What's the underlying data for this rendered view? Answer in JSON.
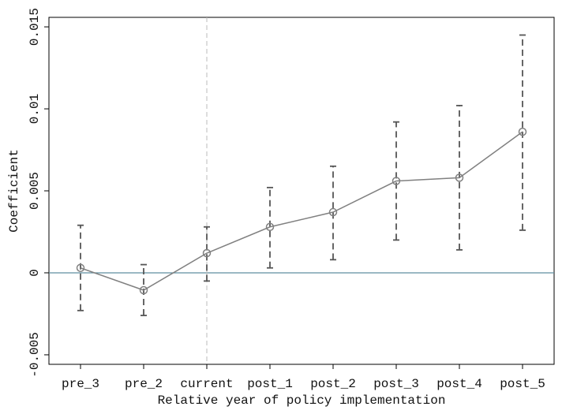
{
  "chart_data": {
    "type": "errorbar",
    "x_label": "Relative year of policy implementation",
    "y_label": "Coefficient",
    "categories": [
      "pre_3",
      "pre_2",
      "current",
      "post_1",
      "post_2",
      "post_3",
      "post_4",
      "post_5"
    ],
    "series": [
      {
        "color": "#808080",
        "error_color": "#555555",
        "values": [
          0.0003,
          -0.00106,
          0.0012,
          0.0028,
          0.0037,
          0.0056,
          0.0058,
          0.0086
        ],
        "lower": [
          -0.0023,
          -0.0026,
          -0.0005,
          0.0003,
          0.0008,
          0.002,
          0.0014,
          0.0026
        ],
        "upper": [
          0.0029,
          0.0005,
          0.0028,
          0.0052,
          0.0065,
          0.0092,
          0.0102,
          0.0145
        ]
      }
    ],
    "ylim": [
      -0.00558,
      0.01558
    ],
    "yticks": [
      -0.005,
      0,
      0.005,
      0.01,
      0.015
    ],
    "hline": 0,
    "hline_color": "#5f8fa0",
    "vline": "current",
    "vline_color": "#bbbbbb"
  }
}
